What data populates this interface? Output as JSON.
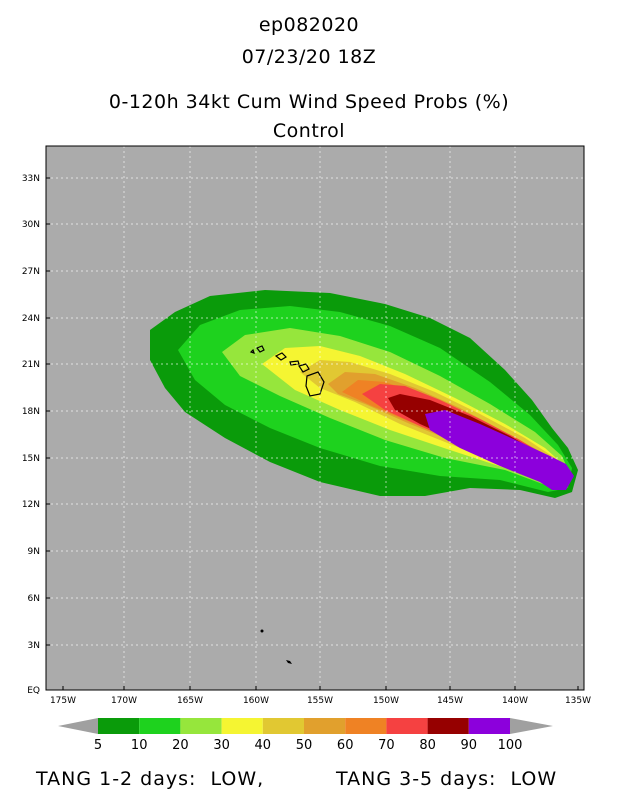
{
  "titles": {
    "storm_id": "ep082020",
    "datetime": "07/23/20 18Z",
    "product": "0-120h 34kt Cum Wind Speed Probs (%)",
    "run": "Control"
  },
  "axes": {
    "lat_labels": [
      "33N",
      "30N",
      "27N",
      "24N",
      "21N",
      "18N",
      "15N",
      "12N",
      "9N",
      "6N",
      "3N",
      "EQ"
    ],
    "lon_labels": [
      "175W",
      "170W",
      "165W",
      "160W",
      "155W",
      "150W",
      "145W",
      "140W",
      "135W"
    ]
  },
  "colorbar": {
    "levels": [
      "5",
      "10",
      "20",
      "30",
      "40",
      "50",
      "60",
      "70",
      "80",
      "90",
      "100"
    ],
    "colors": [
      "#0a9b0a",
      "#1ed21e",
      "#96e63c",
      "#f5f532",
      "#e1c832",
      "#e1a02d",
      "#ef8224",
      "#f54141",
      "#960000",
      "#8c00dc"
    ]
  },
  "colors": {
    "land": "#ababab",
    "contour_5": "#0a9b0a",
    "contour_10": "#1ed21e",
    "contour_20": "#96e63c",
    "contour_30": "#f5f532",
    "contour_40": "#e1c832",
    "contour_50": "#e1a02d",
    "contour_60": "#ef8224",
    "contour_70": "#f54141",
    "contour_80": "#960000",
    "contour_90": "#8c00dc"
  },
  "footer": {
    "left": "TANG 1-2 days:  LOW,",
    "right": "TANG 3-5 days:  LOW"
  }
}
